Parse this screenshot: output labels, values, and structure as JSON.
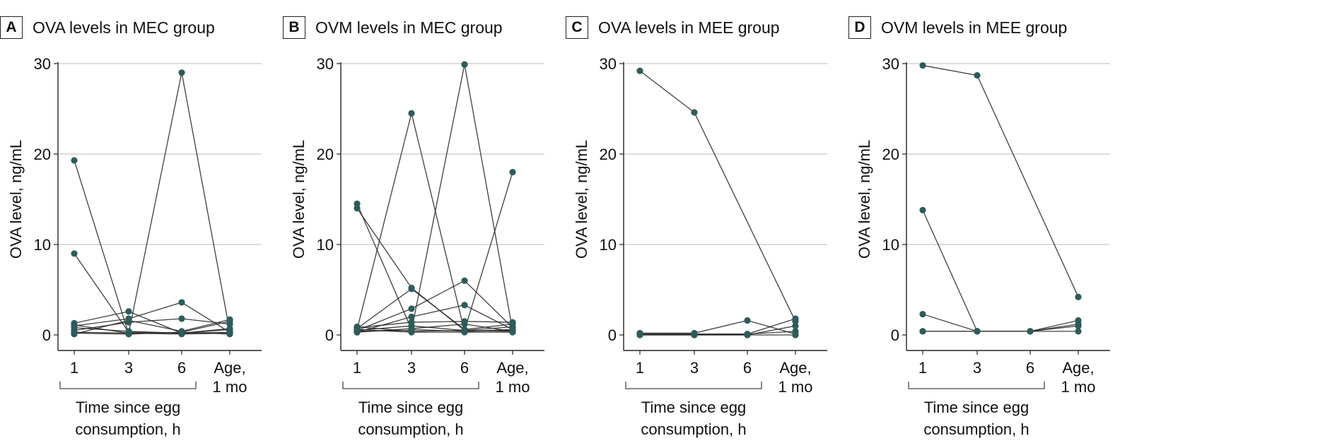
{
  "chart_data": [
    {
      "type": "line",
      "panel_letter": "A",
      "title": "OVA levels in MEC group",
      "ylabel": "OVA level, ng/mL",
      "ylim": [
        0,
        30
      ],
      "yticks": [
        "0",
        "10",
        "20",
        "30"
      ],
      "xticks": [
        [
          "1"
        ],
        [
          "3"
        ],
        [
          "6"
        ],
        [
          "Age,",
          "1 mo"
        ]
      ],
      "xgroup_label": [
        "Time since egg",
        "consumption, h"
      ],
      "grid": true,
      "marker_color": "#2e5b5b",
      "series": [
        {
          "values": [
            19.3,
            0.1,
            0.3,
            0.1
          ]
        },
        {
          "values": [
            9.0,
            0.3,
            0.2,
            0.3
          ]
        },
        {
          "values": [
            0.3,
            0.2,
            29.0,
            0.4
          ]
        },
        {
          "values": [
            1.3,
            2.6,
            0.2,
            0.7
          ]
        },
        {
          "values": [
            1.0,
            1.8,
            3.6,
            0.3
          ]
        },
        {
          "values": [
            0.5,
            1.4,
            1.8,
            1.2
          ]
        },
        {
          "values": [
            0.1,
            1.6,
            0.4,
            1.7
          ]
        },
        {
          "values": [
            1.1,
            0.2,
            0.1,
            0.2
          ]
        },
        {
          "values": [
            0.2,
            0.1,
            0.3,
            1.5
          ]
        },
        {
          "values": [
            0.8,
            0.4,
            0.2,
            0.6
          ]
        }
      ]
    },
    {
      "type": "line",
      "panel_letter": "B",
      "title": "OVM levels in MEC group",
      "ylabel": "OVA level, ng/mL",
      "ylim": [
        0,
        30
      ],
      "yticks": [
        "0",
        "10",
        "20",
        "30"
      ],
      "xticks": [
        [
          "1"
        ],
        [
          "3"
        ],
        [
          "6"
        ],
        [
          "Age,",
          "1 mo"
        ]
      ],
      "xgroup_label": [
        "Time since egg",
        "consumption, h"
      ],
      "grid": true,
      "marker_color": "#2e5b5b",
      "series": [
        {
          "values": [
            14.5,
            0.6,
            0.4,
            0.5
          ]
        },
        {
          "values": [
            14.0,
            5.2,
            0.5,
            0.4
          ]
        },
        {
          "values": [
            0.6,
            24.5,
            0.4,
            0.6
          ]
        },
        {
          "values": [
            0.4,
            0.5,
            29.9,
            0.5
          ]
        },
        {
          "values": [
            0.7,
            5.1,
            0.6,
            1.2
          ]
        },
        {
          "values": [
            0.5,
            2.9,
            6.0,
            0.8
          ]
        },
        {
          "values": [
            0.9,
            0.4,
            0.5,
            18.0
          ]
        },
        {
          "values": [
            0.3,
            2.0,
            3.3,
            0.6
          ]
        },
        {
          "values": [
            0.8,
            1.4,
            1.5,
            1.4
          ]
        },
        {
          "values": [
            0.5,
            1.0,
            0.5,
            0.9
          ]
        },
        {
          "values": [
            0.3,
            0.7,
            1.2,
            0.4
          ]
        },
        {
          "values": [
            0.6,
            0.3,
            0.3,
            0.3
          ]
        }
      ]
    },
    {
      "type": "line",
      "panel_letter": "C",
      "title": "OVA levels in MEE group",
      "ylabel": "OVA level, ng/mL",
      "ylim": [
        0,
        30
      ],
      "yticks": [
        "0",
        "10",
        "20",
        "30"
      ],
      "xticks": [
        [
          "1"
        ],
        [
          "3"
        ],
        [
          "6"
        ],
        [
          "Age,",
          "1 mo"
        ]
      ],
      "xgroup_label": [
        "Time since egg",
        "consumption, h"
      ],
      "grid": true,
      "marker_color": "#2e5b5b",
      "series": [
        {
          "values": [
            29.2,
            24.6,
            null,
            1.5
          ]
        },
        {
          "values": [
            0.2,
            0.2,
            1.6,
            0.1
          ]
        },
        {
          "values": [
            0.1,
            0.1,
            0.1,
            1.8
          ]
        },
        {
          "values": [
            0.0,
            0.0,
            0.0,
            1.0
          ]
        },
        {
          "values": [
            0.1,
            0.1,
            0.1,
            0.4
          ]
        },
        {
          "values": [
            0.0,
            0.0,
            0.0,
            0.0
          ]
        }
      ]
    },
    {
      "type": "line",
      "panel_letter": "D",
      "title": "OVM levels in MEE group",
      "ylabel": "OVA level, ng/mL",
      "ylim": [
        0,
        30
      ],
      "yticks": [
        "0",
        "10",
        "20",
        "30"
      ],
      "xticks": [
        [
          "1"
        ],
        [
          "3"
        ],
        [
          "6"
        ],
        [
          "Age,",
          "1 mo"
        ]
      ],
      "xgroup_label": [
        "Time since egg",
        "consumption, h"
      ],
      "grid": true,
      "marker_color": "#2e5b5b",
      "series": [
        {
          "values": [
            29.8,
            28.7,
            null,
            4.2
          ]
        },
        {
          "values": [
            13.8,
            0.4,
            0.4,
            1.6
          ]
        },
        {
          "values": [
            2.3,
            0.4,
            0.4,
            1.2
          ]
        },
        {
          "values": [
            0.4,
            0.4,
            0.4,
            1.0
          ]
        },
        {
          "values": [
            0.4,
            0.4,
            0.4,
            0.4
          ]
        }
      ]
    }
  ]
}
